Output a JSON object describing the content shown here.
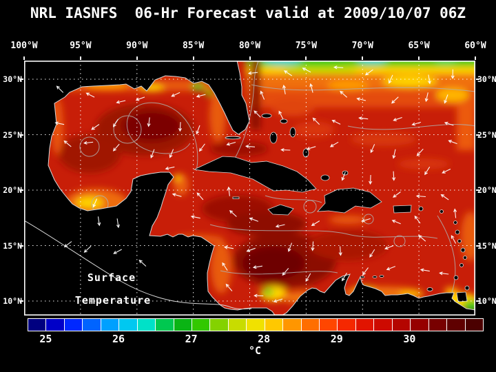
{
  "title": "NRL IASNFS  06-Hr Forecast valid at 2009/10/07 06Z",
  "axes": {
    "top": [
      "100°W",
      "95°W",
      "90°W",
      "85°W",
      "80°W",
      "75°W",
      "70°W",
      "65°W",
      "60°W"
    ],
    "left": [
      "30°N",
      "25°N",
      "20°N",
      "15°N",
      "10°N"
    ],
    "right": [
      "30°N",
      "25°N",
      "20°N",
      "15°N",
      "10°N"
    ]
  },
  "map": {
    "annotation": {
      "line1": "Surface",
      "line2": "Temperature"
    }
  },
  "colorbar": {
    "tick_labels": [
      "25",
      "26",
      "27",
      "28",
      "29",
      "30"
    ],
    "unit": "°C",
    "segment_colors": [
      "#000080",
      "#0000c8",
      "#0028ff",
      "#0064ff",
      "#00a0ff",
      "#00c8f0",
      "#00e1c8",
      "#00c850",
      "#0ab414",
      "#32c800",
      "#84d200",
      "#c8dc00",
      "#f0e100",
      "#ffc800",
      "#ff9600",
      "#ff6e00",
      "#ff4600",
      "#f52800",
      "#e11400",
      "#cd0a00",
      "#b40500",
      "#960000",
      "#780000",
      "#5f0000",
      "#4b0000"
    ]
  },
  "chart_data": {
    "type": "heatmap",
    "title": "NRL IASNFS 06-Hr Forecast valid at 2009/10/07 06Z",
    "field": "sea surface temperature",
    "overlay": "surface current vectors (white arrows)",
    "x_ticks": [
      "100°W",
      "95°W",
      "90°W",
      "85°W",
      "80°W",
      "75°W",
      "70°W",
      "65°W",
      "60°W"
    ],
    "y_ticks": [
      "30°N",
      "25°N",
      "20°N",
      "15°N",
      "10°N"
    ],
    "colorbar_ticks": [
      25,
      26,
      27,
      28,
      29,
      30
    ],
    "colorbar_unit": "°C"
  }
}
